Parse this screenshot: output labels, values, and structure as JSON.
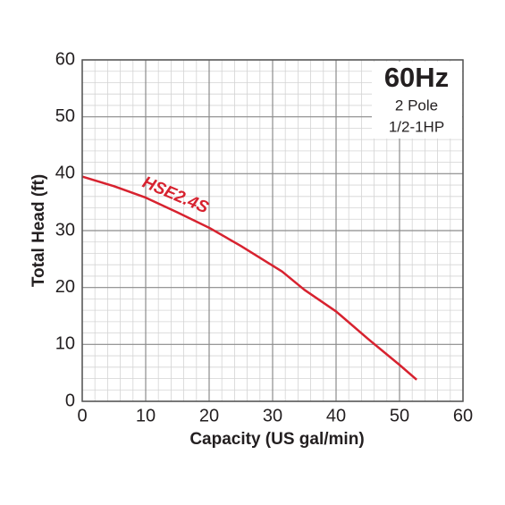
{
  "chart_data": {
    "type": "line",
    "x_label": "Capacity (US gal/min)",
    "y_label": "Total Head (ft)",
    "annotations": [
      "60Hz",
      "2 Pole",
      "1/2-1HP"
    ],
    "series": [
      {
        "name": "HSE2.4S",
        "color": "#d7222f",
        "x": [
          0,
          5,
          10,
          15,
          20,
          25,
          31.5,
          35,
          40,
          45,
          50,
          52.7
        ],
        "values": [
          39.5,
          37.8,
          35.8,
          33.2,
          30.5,
          27.3,
          22.8,
          19.6,
          15.8,
          11.0,
          6.4,
          3.8
        ]
      }
    ],
    "xlim": [
      0,
      60
    ],
    "ylim": [
      0,
      60
    ],
    "xticks": [
      0,
      10,
      20,
      30,
      40,
      50,
      60
    ],
    "yticks": [
      0,
      10,
      20,
      30,
      40,
      50,
      60
    ],
    "grid": true,
    "minor_grid_step": 2
  }
}
